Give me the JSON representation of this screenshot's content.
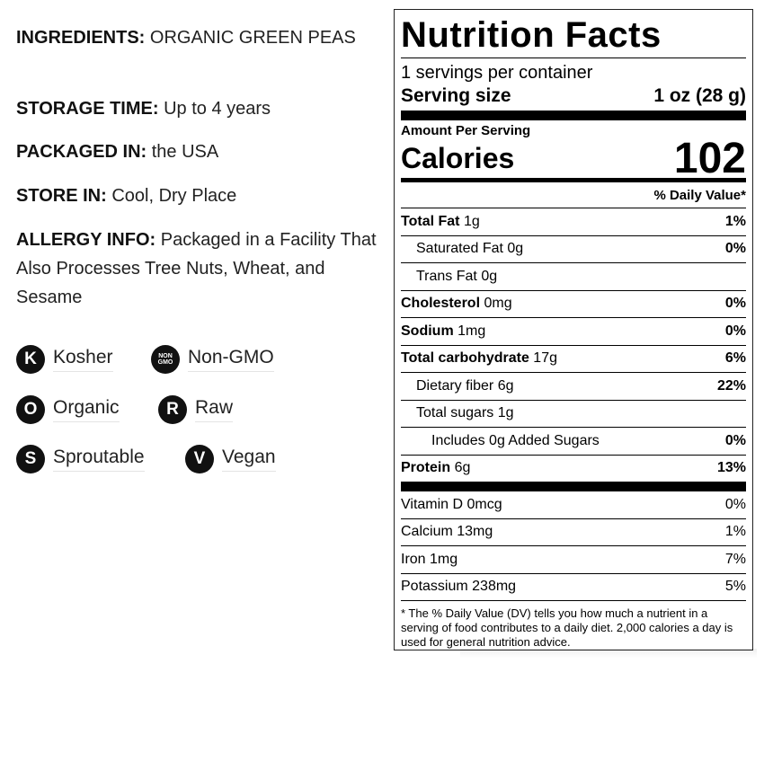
{
  "info": [
    {
      "label": "INGREDIENTS:",
      "text": "ORGANIC GREEN PEAS"
    },
    {
      "label": "STORAGE TIME:",
      "text": "Up to 4 years"
    },
    {
      "label": "PACKAGED IN:",
      "text": "the USA"
    },
    {
      "label": "STORE IN:",
      "text": "Cool, Dry Place"
    },
    {
      "label": "ALLERGY INFO:",
      "text": "Packaged in a Facility That Also Processes Tree Nuts, Wheat, and Sesame"
    }
  ],
  "badges": [
    {
      "icon": "K",
      "label": "Kosher"
    },
    {
      "icon": "NON GMO",
      "label": "Non-GMO"
    },
    {
      "icon": "O",
      "label": "Organic"
    },
    {
      "icon": "R",
      "label": "Raw"
    },
    {
      "icon": "S",
      "label": "Sproutable"
    },
    {
      "icon": "V",
      "label": "Vegan"
    }
  ],
  "nutrition": {
    "title": "Nutrition Facts",
    "servings": "1 servings per container",
    "serving_size_label": "Serving size",
    "serving_size_value": "1 oz (28 g)",
    "amount_per_serving": "Amount Per Serving",
    "calories_label": "Calories",
    "calories_value": 102,
    "daily_value_header": "% Daily Value*",
    "nutrients": [
      {
        "name": "Total Fat",
        "amount": "1g",
        "dv": "1%"
      },
      {
        "name": "Saturated Fat",
        "amount": "0g",
        "dv": "0%"
      },
      {
        "name": "Trans Fat",
        "amount": "0g"
      },
      {
        "name": "Cholesterol",
        "amount": "0mg",
        "dv": "0%"
      },
      {
        "name": "Sodium",
        "amount": "1mg",
        "dv": "0%"
      },
      {
        "name": "Total carbohydrate",
        "amount": "17g",
        "dv": "6%"
      },
      {
        "name": "Dietary fiber",
        "amount": "6g",
        "dv": "22%"
      },
      {
        "name": "Total sugars",
        "amount": "1g"
      },
      {
        "name": "Includes 0g Added Sugars",
        "dv": "0%"
      },
      {
        "name": "Protein",
        "amount": "6g",
        "dv": "13%"
      }
    ],
    "vitamins": [
      {
        "name": "Vitamin D",
        "amount": "0mcg",
        "dv": "0%"
      },
      {
        "name": "Calcium",
        "amount": "13mg",
        "dv": "1%"
      },
      {
        "name": "Iron",
        "amount": "1mg",
        "dv": "7%"
      },
      {
        "name": "Potassium",
        "amount": "238mg",
        "dv": "5%"
      }
    ],
    "footnote": "* The % Daily Value (DV) tells you how much a nutrient in a serving of food contributes to a daily diet. 2,000 calories a day is used for general nutrition advice."
  }
}
